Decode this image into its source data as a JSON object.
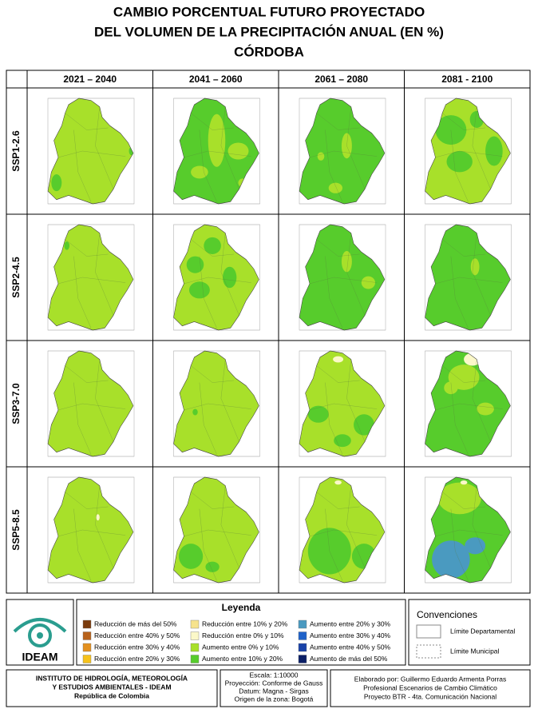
{
  "header": {
    "title_lines": [
      "CAMBIO PORCENTUAL FUTURO PROYECTADO",
      "DEL VOLUMEN DE LA PRECIPITACIÓN ANUAL (EN %)",
      "CÓRDOBA"
    ]
  },
  "table": {
    "columns": [
      "2021 – 2040",
      "2041 – 2060",
      "2061 – 2080",
      "2081 - 2100"
    ],
    "rows": [
      "SSP1-2.6",
      "SSP2-4.5",
      "SSP3-7.0",
      "SSP5-8.5"
    ]
  },
  "legend": {
    "title": "Leyenda",
    "items": [
      {
        "label": "Reducción de más del 50%",
        "color": "#7a3b0c"
      },
      {
        "label": "Reducción entre 40% y 50%",
        "color": "#b8621b"
      },
      {
        "label": "Reducción entre 30% y 40%",
        "color": "#e3901f"
      },
      {
        "label": "Reducción entre 20% y 30%",
        "color": "#f6c21b"
      },
      {
        "label": "Reducción entre 10% y 20%",
        "color": "#f6e38c"
      },
      {
        "label": "Reducción entre 0% y 10%",
        "color": "#fbf8c8"
      },
      {
        "label": "Aumento entre 0% y 10%",
        "color": "#a8e02a"
      },
      {
        "label": "Aumento entre 10% y 20%",
        "color": "#57cc2c"
      },
      {
        "label": "Aumento entre 20% y 30%",
        "color": "#4a9ac0"
      },
      {
        "label": "Aumento entre 30% y 40%",
        "color": "#1f62c9"
      },
      {
        "label": "Aumento entre 40% y 50%",
        "color": "#1942a8"
      },
      {
        "label": "Aumento de más del 50%",
        "color": "#0b1f66"
      }
    ]
  },
  "conventions": {
    "title": "Convenciones",
    "items": [
      "Límite Departamental",
      "Límite Municipal"
    ]
  },
  "logo": {
    "text": "IDEAM"
  },
  "footer": {
    "institute": [
      "INSTITUTO DE HIDROLOGÍA, METEOROLOGÍA",
      "Y ESTUDIOS AMBIENTALES - IDEAM",
      "República de Colombia"
    ],
    "map_info": [
      "Escala: 1:10000",
      "Proyección: Conforme de Gauss",
      "Datum: Magna - Sirgas",
      "Origen de la zona: Bogotá"
    ],
    "credits": [
      "Elaborado por: Guillermo Eduardo Armenta Porras",
      "Profesional Escenarios de Cambio Climático",
      "Proyecto BTR - 4ta. Comunicación Nacional"
    ]
  }
}
